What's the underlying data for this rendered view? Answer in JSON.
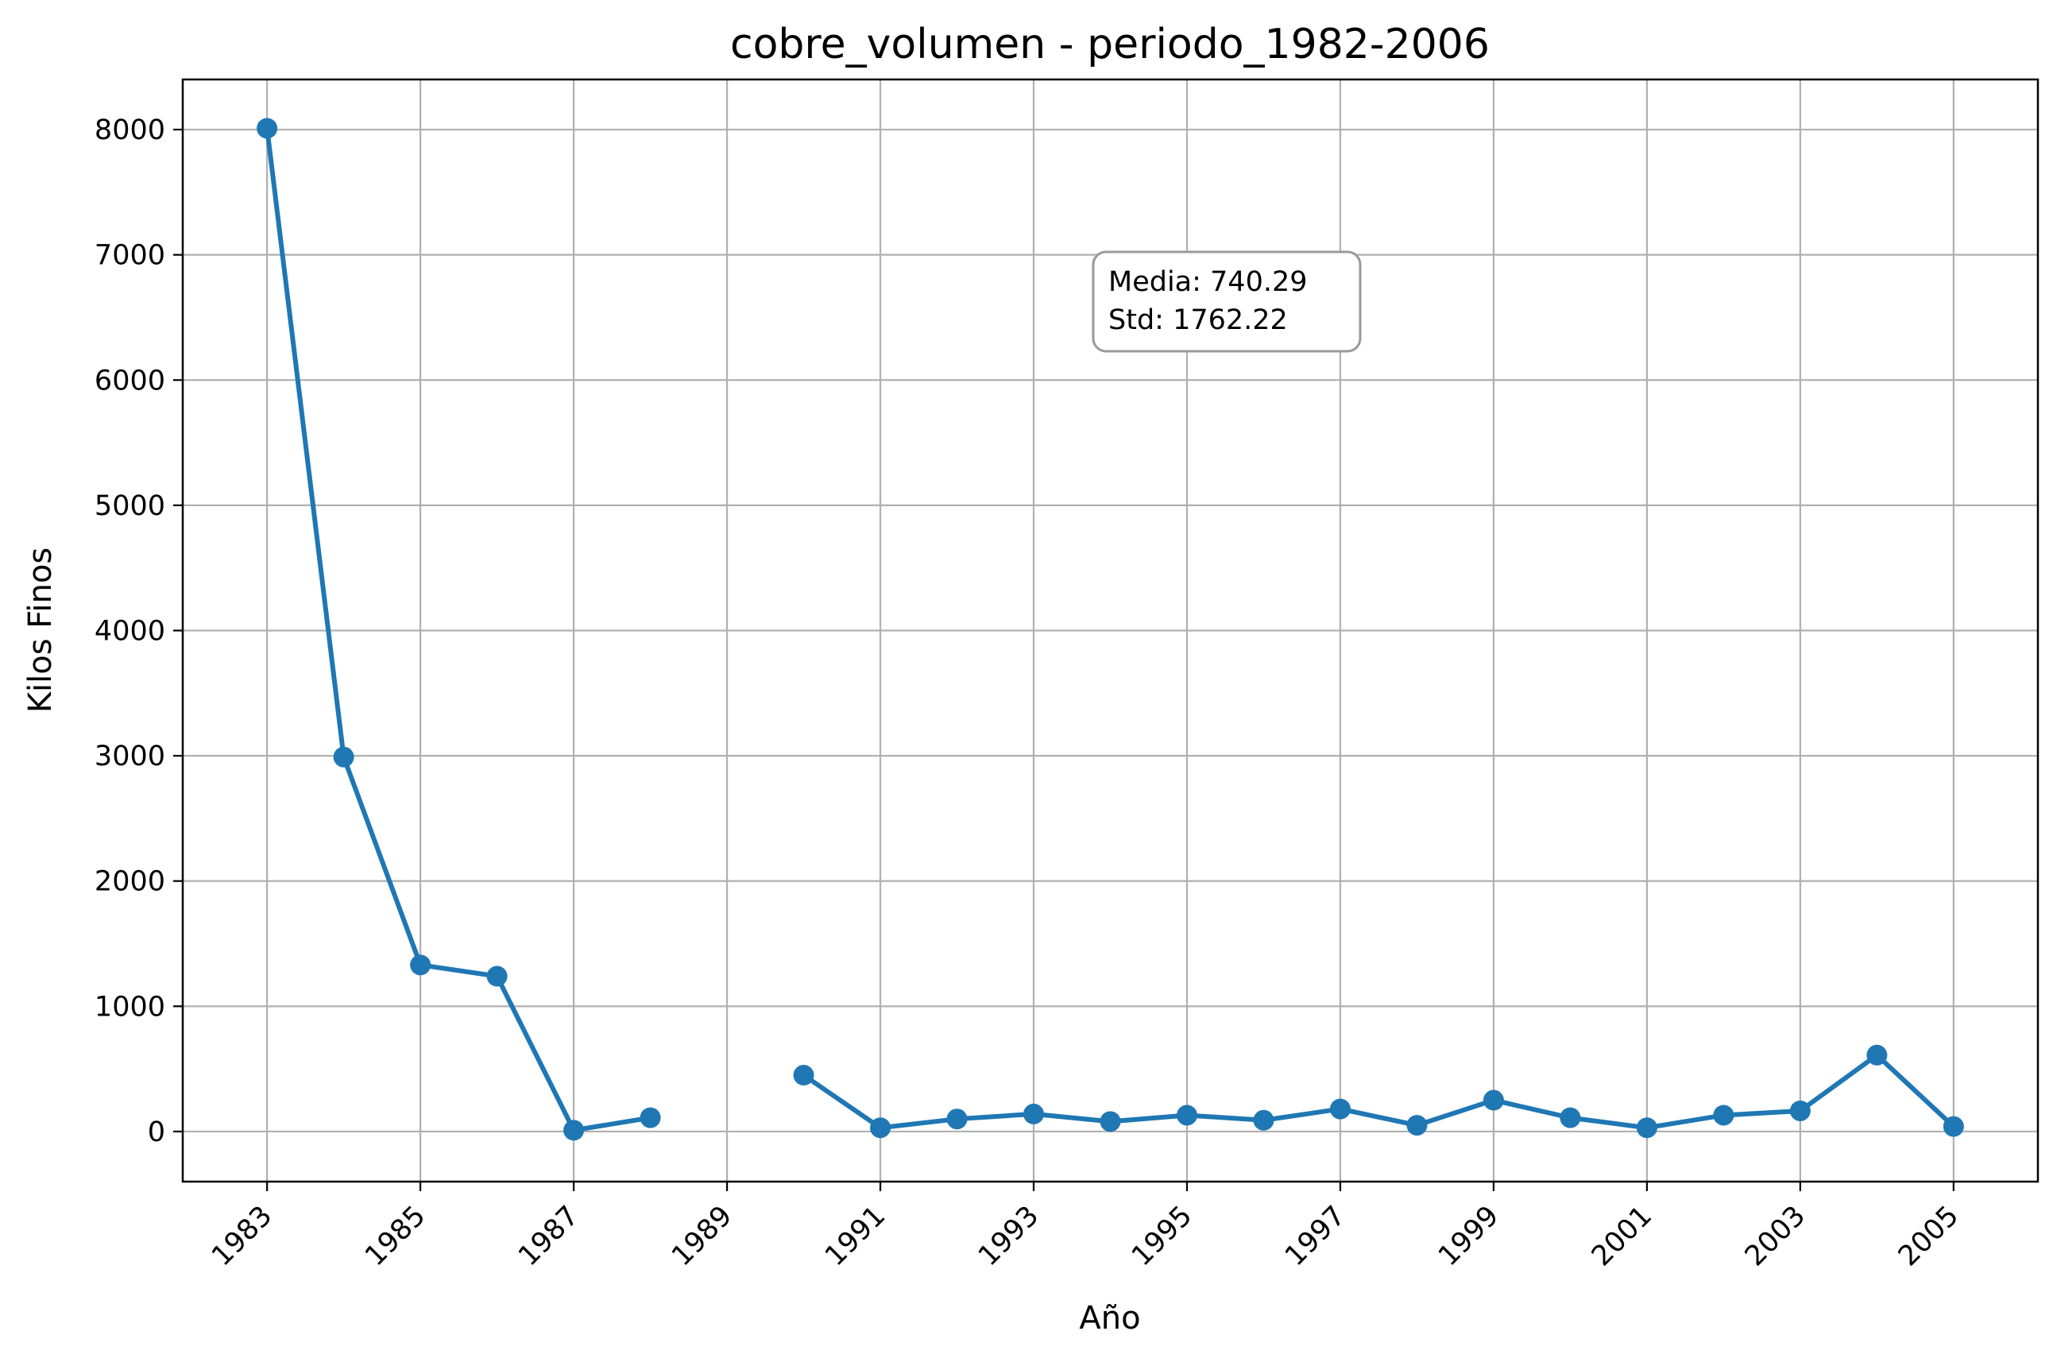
{
  "chart_data": {
    "type": "line",
    "title": "cobre_volumen - periodo_1982-2006",
    "xlabel": "Año",
    "ylabel": "Kilos Finos",
    "xlim": [
      1981.9,
      2006.1
    ],
    "ylim": [
      -400,
      8400
    ],
    "xticks": [
      1983,
      1985,
      1987,
      1989,
      1991,
      1993,
      1995,
      1997,
      1999,
      2001,
      2003,
      2005
    ],
    "yticks": [
      0,
      1000,
      2000,
      3000,
      4000,
      5000,
      6000,
      7000,
      8000
    ],
    "grid": true,
    "line_color": "#1f77b4",
    "annotation": {
      "line1": "Media: 740.29",
      "line2": "Std: 1762.22"
    },
    "series": [
      {
        "x": [
          1983,
          1984,
          1985,
          1986,
          1987,
          1988,
          1989,
          1990,
          1991,
          1992,
          1993,
          1994,
          1995,
          1996,
          1997,
          1998,
          1999,
          2000,
          2001,
          2002,
          2003,
          2004,
          2005
        ],
        "values": [
          8010,
          2990,
          1330,
          1240,
          10,
          110,
          null,
          450,
          30,
          100,
          140,
          80,
          130,
          90,
          180,
          50,
          250,
          110,
          30,
          130,
          165,
          610,
          40
        ]
      }
    ]
  }
}
